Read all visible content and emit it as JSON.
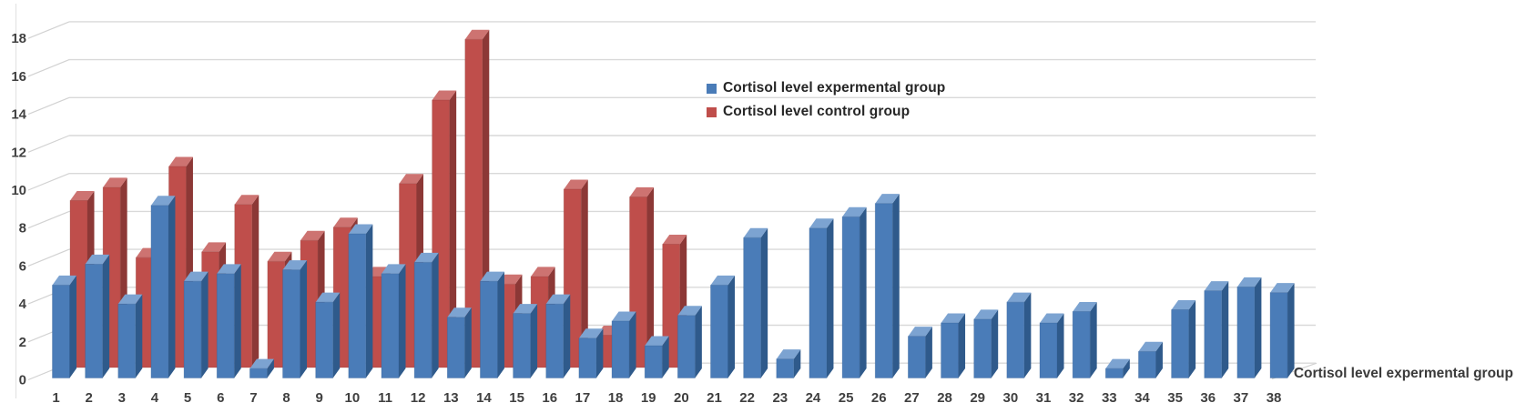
{
  "chart_data": {
    "type": "bar",
    "style": "3d-clustered-column",
    "title": "",
    "categories": [
      1,
      2,
      3,
      4,
      5,
      6,
      7,
      8,
      9,
      10,
      11,
      12,
      13,
      14,
      15,
      16,
      17,
      18,
      19,
      20,
      21,
      22,
      23,
      24,
      25,
      26,
      27,
      28,
      29,
      30,
      31,
      32,
      33,
      34,
      35,
      36,
      37,
      38
    ],
    "series": [
      {
        "name": "Cortisol level expermental group",
        "color": "#4a7cb8",
        "color_dark": "#2f5a8b",
        "color_light": "#7ca3d1",
        "values": [
          4.9,
          6.0,
          3.9,
          9.1,
          5.1,
          5.5,
          0.5,
          5.7,
          4.0,
          7.6,
          5.5,
          6.1,
          3.2,
          5.1,
          3.4,
          3.9,
          2.1,
          3.0,
          1.7,
          3.3,
          4.9,
          7.4,
          1.0,
          7.9,
          8.5,
          9.2,
          2.2,
          2.9,
          3.1,
          4.0,
          2.9,
          3.5,
          0.5,
          1.4,
          3.6,
          4.6,
          4.8,
          4.5
        ]
      },
      {
        "name": "Cortisol level control group",
        "color": "#bf4e4b",
        "color_dark": "#8c3836",
        "color_light": "#cd7371",
        "values": [
          8.8,
          9.5,
          5.8,
          10.6,
          6.1,
          8.6,
          5.6,
          6.7,
          7.4,
          4.8,
          9.7,
          14.1,
          17.3,
          4.4,
          4.8,
          9.4,
          1.7,
          9.0,
          6.5,
          null,
          null,
          null,
          null,
          null,
          null,
          null,
          null,
          null,
          null,
          null,
          null,
          null,
          null,
          null,
          null,
          null,
          null,
          null
        ]
      }
    ],
    "ylim": [
      0,
      18
    ],
    "ytick_step": 2,
    "yticks": [
      0,
      2,
      4,
      6,
      8,
      10,
      12,
      14,
      16,
      18
    ],
    "grid": true,
    "legend_position": "upper-center",
    "depth_axis_label": "Cortisol level expermental group",
    "gridline_color": "#d9d9d9",
    "tick_text_color": "#404040"
  }
}
